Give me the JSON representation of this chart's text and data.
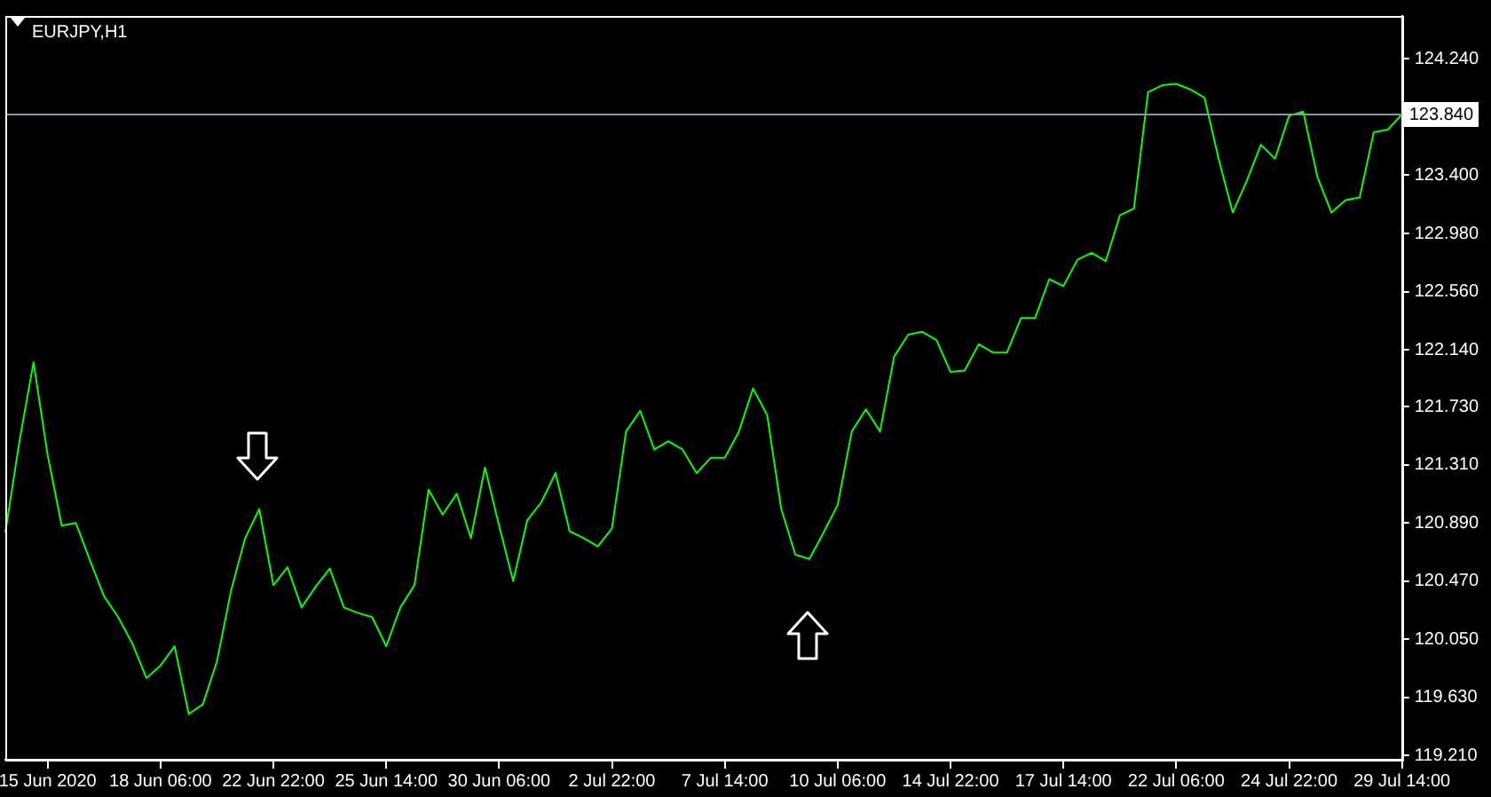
{
  "chart_data": {
    "type": "line",
    "title": "EURJPY,H1",
    "categories": [
      null,
      null,
      null,
      "15 Jun 2020",
      null,
      null,
      null,
      null,
      null,
      null,
      null,
      "18 Jun 06:00",
      null,
      null,
      null,
      null,
      null,
      null,
      null,
      "22 Jun 22:00",
      null,
      null,
      null,
      null,
      null,
      null,
      null,
      "25 Jun 14:00",
      null,
      null,
      null,
      null,
      null,
      null,
      null,
      "30 Jun 06:00",
      null,
      null,
      null,
      null,
      null,
      null,
      null,
      "2 Jul 22:00",
      null,
      null,
      null,
      null,
      null,
      null,
      null,
      "7 Jul 14:00",
      null,
      null,
      null,
      null,
      null,
      null,
      null,
      "10 Jul 06:00",
      null,
      null,
      null,
      null,
      null,
      null,
      null,
      "14 Jul 22:00",
      null,
      null,
      null,
      null,
      null,
      null,
      null,
      "17 Jul 14:00",
      null,
      null,
      null,
      null,
      null,
      null,
      null,
      "22 Jul 06:00",
      null,
      null,
      null,
      null,
      null,
      null,
      null,
      "24 Jul 22:00",
      null,
      null,
      null,
      null,
      null,
      null,
      null,
      "29 Jul 14:00"
    ],
    "series": [
      {
        "color": "#00ff00",
        "values": [
          120.82,
          121.48,
          122.05,
          121.38,
          120.87,
          120.89,
          120.62,
          120.36,
          120.21,
          120.02,
          119.77,
          119.86,
          120.0,
          119.51,
          119.58,
          119.89,
          120.4,
          120.78,
          120.99,
          120.44,
          120.57,
          120.28,
          120.43,
          120.56,
          120.28,
          120.24,
          120.21,
          120.0,
          120.28,
          120.44,
          121.13,
          120.95,
          121.1,
          120.78,
          121.29,
          120.87,
          120.47,
          120.91,
          121.04,
          121.25,
          120.83,
          120.78,
          120.72,
          120.85,
          121.55,
          121.7,
          121.42,
          121.48,
          121.42,
          121.25,
          121.36,
          121.36,
          121.55,
          121.86,
          121.67,
          120.99,
          120.66,
          120.63,
          120.82,
          121.02,
          121.55,
          121.71,
          121.55,
          122.09,
          122.25,
          122.27,
          122.21,
          121.98,
          121.99,
          122.18,
          122.12,
          122.12,
          122.37,
          122.37,
          122.65,
          122.6,
          122.79,
          122.84,
          122.78,
          123.11,
          123.16,
          124.0,
          124.05,
          124.06,
          124.02,
          123.96,
          123.52,
          123.13,
          123.36,
          123.62,
          123.52,
          123.83,
          123.86,
          123.39,
          123.13,
          123.22,
          123.24,
          123.71,
          123.73,
          123.84
        ]
      }
    ],
    "ylim": [
      119.18,
      124.55
    ],
    "yticks": [
      {
        "value": 119.21,
        "label": "119.210"
      },
      {
        "value": 119.63,
        "label": "119.630"
      },
      {
        "value": 120.05,
        "label": "120.050"
      },
      {
        "value": 120.47,
        "label": "120.470"
      },
      {
        "value": 120.89,
        "label": "120.890"
      },
      {
        "value": 121.31,
        "label": "121.310"
      },
      {
        "value": 121.73,
        "label": "121.730"
      },
      {
        "value": 122.14,
        "label": "122.140"
      },
      {
        "value": 122.56,
        "label": "122.560"
      },
      {
        "value": 122.98,
        "label": "122.980"
      },
      {
        "value": 123.4,
        "label": "123.400"
      },
      {
        "value": 124.24,
        "label": "124.240"
      }
    ],
    "ref_lines": [
      {
        "axis": "y",
        "value": 123.84,
        "label": "123.840",
        "color": "#8a95a5"
      }
    ],
    "grid": false,
    "legend": false,
    "marker": "none",
    "line_style": "solid"
  }
}
